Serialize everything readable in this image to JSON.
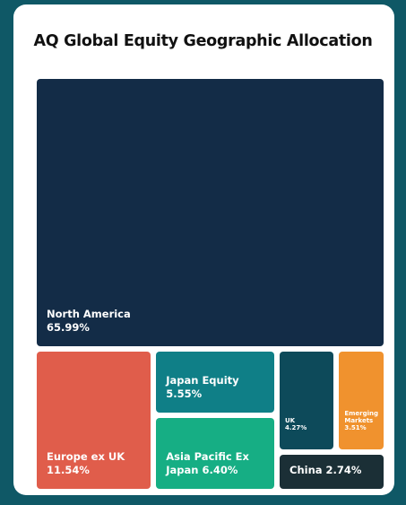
{
  "chart_data": {
    "type": "treemap",
    "title": "AQ Global Equity Geographic Allocation",
    "categories": [
      "North America",
      "Europe ex UK",
      "Japan Equity",
      "Asia Pacific Ex Japan",
      "UK",
      "Emerging Markets",
      "China"
    ],
    "values": [
      65.99,
      11.54,
      5.55,
      6.4,
      4.27,
      3.51,
      2.74
    ],
    "value_labels": [
      "65.99%",
      "11.54%",
      "5.55%",
      "6.40%",
      "4.27%",
      "3.51%",
      "2.74%"
    ],
    "colors": [
      "#132c47",
      "#e05d4b",
      "#0f7f87",
      "#16ae84",
      "#0d4a5a",
      "#f0922e",
      "#1b2f36"
    ]
  }
}
